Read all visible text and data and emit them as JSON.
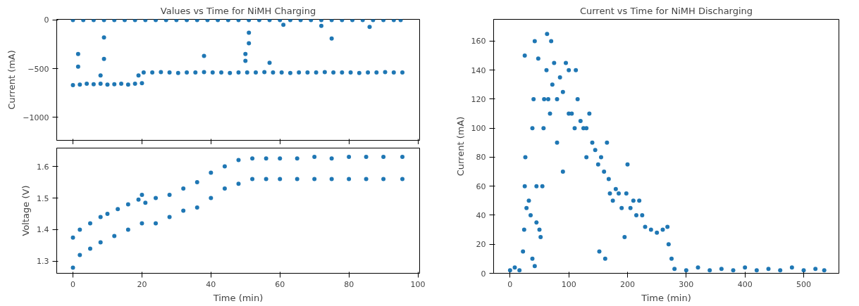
{
  "chart_data": [
    {
      "type": "scatter",
      "title": "Values vs Time for NiMH Charging",
      "ylabel": "Current (mA)",
      "xlim": [
        -4.7,
        100.5
      ],
      "xticks": [
        0,
        20,
        40,
        60,
        80,
        100
      ],
      "ylim": [
        -1238,
        7
      ],
      "yticks": [
        0,
        -500,
        -1000
      ],
      "tick_labels": "y",
      "grid": false,
      "marker": "circle",
      "series": [
        {
          "color": "#1f77b4",
          "x": [
            0,
            3,
            6,
            9,
            12,
            15,
            18,
            21,
            24,
            27,
            30,
            33,
            36,
            39,
            42,
            45,
            48,
            51,
            54,
            57,
            60,
            63,
            66,
            69,
            72,
            75,
            78,
            81,
            84,
            87,
            90,
            93,
            95
          ],
          "values": [
            0,
            0,
            0,
            0,
            0,
            0,
            0,
            0,
            0,
            0,
            0,
            0,
            0,
            0,
            0,
            0,
            0,
            0,
            0,
            0,
            0,
            0,
            0,
            0,
            0,
            0,
            0,
            0,
            0,
            0,
            0,
            0,
            0
          ]
        },
        {
          "color": "#1f77b4",
          "x": [
            1.5,
            1.5,
            9,
            9,
            8,
            19,
            38,
            51,
            51,
            50,
            50,
            57,
            61,
            72,
            75,
            86
          ],
          "values": [
            -350,
            -480,
            -180,
            -400,
            -570,
            -570,
            -370,
            -130,
            -240,
            -350,
            -420,
            -440,
            -50,
            -60,
            -190,
            -70
          ]
        },
        {
          "color": "#1f77b4",
          "x": [
            0,
            2,
            4,
            6,
            8,
            10,
            12,
            14,
            16,
            18,
            20
          ],
          "values": [
            -670,
            -665,
            -655,
            -660,
            -655,
            -665,
            -660,
            -655,
            -665,
            -655,
            -650
          ]
        },
        {
          "color": "#1f77b4",
          "x": [
            20.5,
            23,
            25.5,
            28,
            30.5,
            33,
            35.5,
            38,
            40.5,
            43,
            45.5,
            48,
            50.5,
            53,
            55.5,
            58,
            60.5,
            63,
            65.5,
            68,
            70.5,
            73,
            75.5,
            78,
            80.5,
            83,
            85.5,
            88,
            90.5,
            93,
            95.5
          ],
          "values": [
            -540,
            -540,
            -535,
            -540,
            -545,
            -540,
            -540,
            -535,
            -540,
            -540,
            -545,
            -540,
            -540,
            -540,
            -535,
            -540,
            -540,
            -545,
            -540,
            -540,
            -540,
            -535,
            -540,
            -540,
            -540,
            -545,
            -540,
            -540,
            -535,
            -540,
            -540
          ]
        }
      ]
    },
    {
      "type": "scatter",
      "xlabel": "Time (min)",
      "ylabel": "Voltage (V)",
      "xlim": [
        -4.7,
        100.5
      ],
      "xticks": [
        0,
        20,
        40,
        60,
        80,
        100
      ],
      "ylim": [
        1.262,
        1.658
      ],
      "yticks": [
        1.3,
        1.4,
        1.5,
        1.6
      ],
      "grid": false,
      "marker": "circle",
      "series": [
        {
          "color": "#1f77b4",
          "x": [
            0,
            2,
            5,
            8,
            10,
            13,
            16,
            19,
            20,
            21,
            24,
            28,
            32,
            36,
            40,
            44,
            48,
            52,
            56,
            60,
            65,
            70,
            75,
            80,
            85,
            90,
            95.5
          ],
          "values": [
            1.375,
            1.4,
            1.42,
            1.44,
            1.45,
            1.465,
            1.48,
            1.495,
            1.51,
            1.485,
            1.5,
            1.51,
            1.53,
            1.55,
            1.58,
            1.6,
            1.62,
            1.625,
            1.625,
            1.625,
            1.625,
            1.63,
            1.625,
            1.63,
            1.63,
            1.63,
            1.63
          ]
        },
        {
          "color": "#1f77b4",
          "x": [
            0,
            2,
            5,
            8,
            12,
            16,
            20,
            24,
            28,
            32,
            36,
            40,
            44,
            48,
            52,
            56,
            60,
            65,
            70,
            75,
            80,
            85,
            90,
            95.5
          ],
          "values": [
            1.28,
            1.32,
            1.34,
            1.36,
            1.38,
            1.4,
            1.42,
            1.42,
            1.44,
            1.46,
            1.47,
            1.5,
            1.53,
            1.545,
            1.56,
            1.56,
            1.56,
            1.56,
            1.56,
            1.56,
            1.56,
            1.56,
            1.56,
            1.56
          ]
        }
      ]
    },
    {
      "type": "scatter",
      "title": "Current vs Time for NiMH Discharging",
      "xlabel": "Time (min)",
      "ylabel": "Current (mA)",
      "xlim": [
        -28,
        560
      ],
      "xticks": [
        0,
        100,
        200,
        300,
        400,
        500
      ],
      "ylim": [
        0,
        175
      ],
      "yticks": [
        0,
        20,
        40,
        60,
        80,
        100,
        120,
        140,
        160
      ],
      "grid": false,
      "marker": "circle",
      "series": [
        {
          "color": "#1f77b4",
          "x": [
            0,
            8,
            16,
            22,
            24,
            25,
            26,
            25,
            28,
            32,
            35,
            38,
            38,
            40,
            42,
            42,
            45,
            45,
            48,
            50,
            52,
            55,
            57,
            58,
            62,
            63,
            65,
            70,
            68,
            72,
            75,
            80,
            85,
            90,
            95,
            100,
            100,
            90,
            80,
            105,
            110,
            112,
            115,
            120,
            125,
            130,
            135,
            130,
            140,
            145,
            150,
            152,
            155,
            160,
            162,
            165,
            168,
            170,
            175,
            180,
            185,
            190,
            195,
            198,
            200,
            205,
            210,
            215,
            220,
            225,
            230,
            240,
            250,
            260,
            268,
            270,
            275,
            280,
            300,
            320,
            340,
            360,
            380,
            400,
            420,
            440,
            460,
            480,
            500,
            520,
            535
          ],
          "values": [
            2,
            4,
            2,
            15,
            30,
            60,
            80,
            150,
            45,
            50,
            40,
            10,
            100,
            120,
            160,
            5,
            35,
            60,
            148,
            30,
            25,
            60,
            100,
            120,
            140,
            165,
            120,
            160,
            110,
            130,
            145,
            120,
            135,
            125,
            145,
            140,
            110,
            70,
            90,
            110,
            100,
            140,
            120,
            105,
            100,
            100,
            110,
            80,
            90,
            85,
            75,
            15,
            80,
            70,
            10,
            90,
            65,
            55,
            50,
            58,
            55,
            45,
            25,
            55,
            75,
            45,
            50,
            40,
            50,
            40,
            32,
            30,
            28,
            30,
            32,
            20,
            10,
            3,
            2,
            4,
            2,
            3,
            2,
            4,
            2,
            3,
            2,
            4,
            2,
            3,
            2
          ]
        }
      ]
    }
  ]
}
